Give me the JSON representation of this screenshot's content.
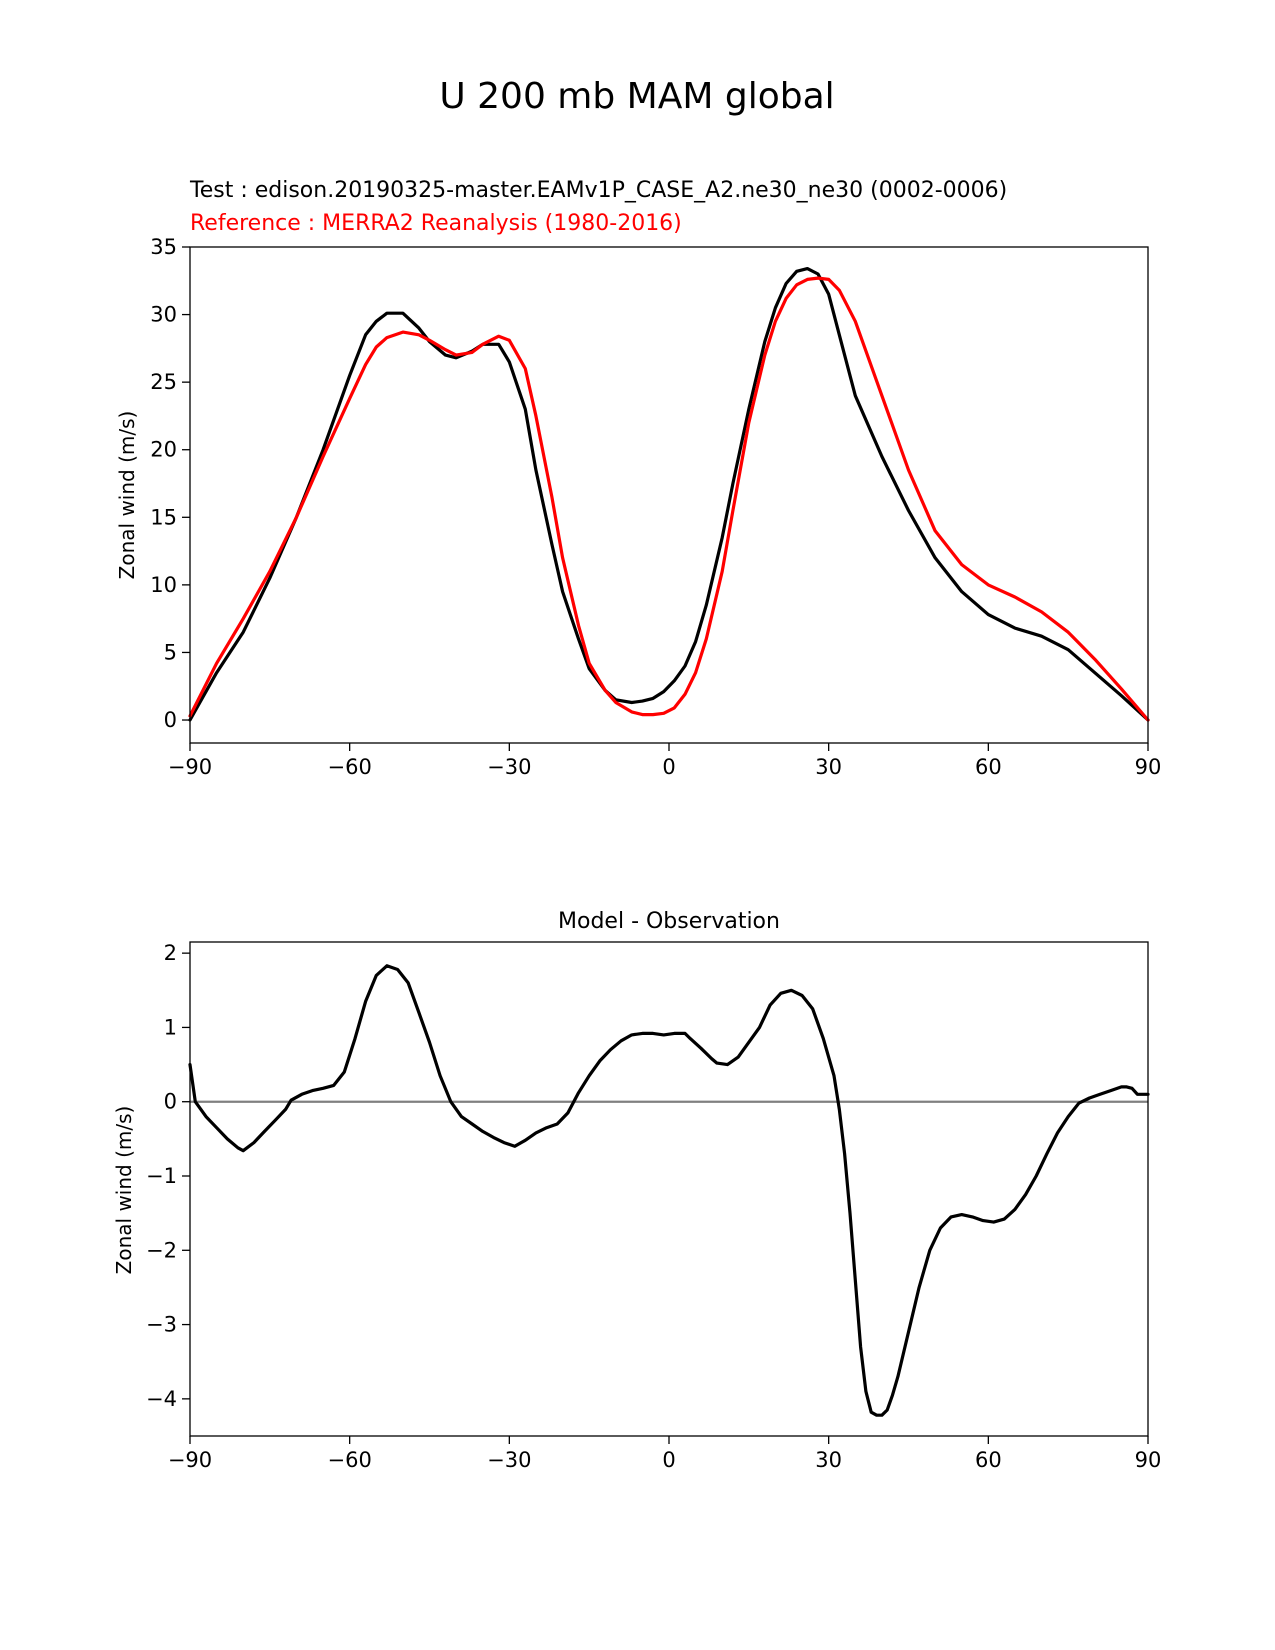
{
  "figure_title": "U 200 mb MAM global",
  "colors": {
    "test": "#000000",
    "reference": "#ff0000",
    "zero_line": "#808080",
    "frame": "#000000"
  },
  "chart_data": [
    {
      "type": "line",
      "title_test": "Test : edison.20190325-master.EAMv1P_CASE_A2.ne30_ne30 (0002-0006)",
      "title_reference": "Reference : MERRA2 Reanalysis (1980-2016)",
      "xlabel": "",
      "ylabel": "Zonal wind (m/s)",
      "xlim": [
        -90,
        90
      ],
      "ylim": [
        -1.7,
        35
      ],
      "xticks": [
        -90,
        -60,
        -30,
        0,
        30,
        60,
        90
      ],
      "xtick_labels": [
        "−90",
        "−60",
        "−30",
        "0",
        "30",
        "60",
        "90"
      ],
      "yticks": [
        0,
        5,
        10,
        15,
        20,
        25,
        30,
        35
      ],
      "ytick_labels": [
        "0",
        "5",
        "10",
        "15",
        "20",
        "25",
        "30",
        "35"
      ],
      "series": [
        {
          "name": "Test",
          "color": "#000000",
          "x": [
            -90,
            -85,
            -80,
            -75,
            -70,
            -65,
            -60,
            -57,
            -55,
            -53,
            -50,
            -47,
            -45,
            -42,
            -40,
            -37,
            -35,
            -32,
            -30,
            -27,
            -25,
            -22,
            -20,
            -17,
            -15,
            -12,
            -10,
            -7,
            -5,
            -3,
            -1,
            1,
            3,
            5,
            7,
            10,
            12,
            15,
            18,
            20,
            22,
            24,
            26,
            28,
            30,
            32,
            35,
            40,
            45,
            50,
            55,
            60,
            65,
            70,
            75,
            80,
            85,
            90
          ],
          "y": [
            0,
            3.5,
            6.5,
            10.5,
            15,
            20,
            25.5,
            28.5,
            29.5,
            30.1,
            30.1,
            29,
            28,
            27,
            26.8,
            27.3,
            27.8,
            27.8,
            26.5,
            23,
            18.5,
            13,
            9.5,
            6,
            3.8,
            2.2,
            1.5,
            1.3,
            1.4,
            1.6,
            2.1,
            2.9,
            4,
            5.8,
            8.5,
            13.5,
            17.5,
            23,
            28,
            30.5,
            32.3,
            33.2,
            33.4,
            33,
            31.5,
            28.5,
            24,
            19.5,
            15.5,
            12,
            9.5,
            7.8,
            6.8,
            6.2,
            5.2,
            3.5,
            1.8,
            0
          ]
        },
        {
          "name": "Reference",
          "color": "#ff0000",
          "x": [
            -90,
            -85,
            -80,
            -75,
            -70,
            -65,
            -60,
            -57,
            -55,
            -53,
            -50,
            -47,
            -45,
            -42,
            -40,
            -37,
            -35,
            -32,
            -30,
            -27,
            -25,
            -22,
            -20,
            -17,
            -15,
            -12,
            -10,
            -7,
            -5,
            -3,
            -1,
            1,
            3,
            5,
            7,
            10,
            12,
            15,
            18,
            20,
            22,
            24,
            26,
            28,
            30,
            32,
            35,
            40,
            45,
            50,
            55,
            60,
            65,
            70,
            75,
            80,
            85,
            90
          ],
          "y": [
            0.3,
            4.2,
            7.5,
            11,
            15,
            19.5,
            23.8,
            26.3,
            27.6,
            28.3,
            28.7,
            28.5,
            28.1,
            27.4,
            27,
            27.2,
            27.8,
            28.4,
            28.1,
            26,
            22.5,
            16.5,
            12,
            7,
            4.2,
            2.2,
            1.3,
            0.6,
            0.4,
            0.4,
            0.5,
            0.9,
            1.9,
            3.5,
            6,
            11,
            15.5,
            22,
            27,
            29.5,
            31.2,
            32.2,
            32.6,
            32.7,
            32.6,
            31.8,
            29.5,
            24,
            18.5,
            14,
            11.5,
            10,
            9.1,
            8,
            6.5,
            4.5,
            2.3,
            0
          ]
        }
      ]
    },
    {
      "type": "line",
      "title": "Model - Observation",
      "xlabel": "",
      "ylabel": "Zonal wind (m/s)",
      "xlim": [
        -90,
        90
      ],
      "ylim": [
        -4.5,
        2.15
      ],
      "xticks": [
        -90,
        -60,
        -30,
        0,
        30,
        60,
        90
      ],
      "xtick_labels": [
        "−90",
        "−60",
        "−30",
        "0",
        "30",
        "60",
        "90"
      ],
      "yticks": [
        -4,
        -3,
        -2,
        -1,
        0,
        1,
        2
      ],
      "ytick_labels": [
        "−4",
        "−3",
        "−2",
        "−1",
        "0",
        "1",
        "2"
      ],
      "zero_line": true,
      "series": [
        {
          "name": "Model - Observation",
          "color": "#000000",
          "x": [
            -90,
            -89,
            -87,
            -85,
            -83,
            -81,
            -80,
            -78,
            -76,
            -74,
            -72,
            -71,
            -69,
            -67,
            -65,
            -63,
            -61,
            -59,
            -57,
            -55,
            -53,
            -51,
            -49,
            -47,
            -45,
            -43,
            -41,
            -39,
            -37,
            -35,
            -33,
            -31,
            -29,
            -27,
            -25,
            -23,
            -21,
            -19,
            -17,
            -15,
            -13,
            -11,
            -9,
            -7,
            -5,
            -3,
            -1,
            1,
            3,
            4,
            6,
            8,
            9,
            11,
            13,
            15,
            17,
            19,
            21,
            23,
            25,
            27,
            29,
            31,
            32,
            33,
            34,
            35,
            36,
            37,
            38,
            39,
            40,
            41,
            42,
            43,
            45,
            47,
            49,
            51,
            53,
            55,
            57,
            59,
            61,
            63,
            65,
            67,
            69,
            71,
            73,
            75,
            77,
            79,
            81,
            83,
            85,
            86,
            87,
            88,
            89,
            90
          ],
          "y": [
            0.5,
            0.0,
            -0.2,
            -0.35,
            -0.5,
            -0.62,
            -0.66,
            -0.55,
            -0.4,
            -0.25,
            -0.1,
            0.02,
            0.1,
            0.15,
            0.18,
            0.22,
            0.4,
            0.85,
            1.35,
            1.7,
            1.83,
            1.78,
            1.6,
            1.2,
            0.8,
            0.35,
            0.0,
            -0.2,
            -0.3,
            -0.4,
            -0.48,
            -0.55,
            -0.6,
            -0.52,
            -0.42,
            -0.35,
            -0.3,
            -0.15,
            0.12,
            0.35,
            0.55,
            0.7,
            0.82,
            0.9,
            0.92,
            0.92,
            0.9,
            0.92,
            0.92,
            0.85,
            0.72,
            0.58,
            0.52,
            0.5,
            0.6,
            0.8,
            1.0,
            1.3,
            1.46,
            1.5,
            1.43,
            1.25,
            0.85,
            0.35,
            -0.1,
            -0.7,
            -1.5,
            -2.4,
            -3.3,
            -3.9,
            -4.18,
            -4.22,
            -4.22,
            -4.15,
            -3.95,
            -3.7,
            -3.1,
            -2.5,
            -2.0,
            -1.7,
            -1.55,
            -1.52,
            -1.55,
            -1.6,
            -1.62,
            -1.58,
            -1.45,
            -1.25,
            -1.0,
            -0.7,
            -0.42,
            -0.2,
            -0.02,
            0.05,
            0.1,
            0.15,
            0.2,
            0.2,
            0.18,
            0.1,
            0.1,
            0.1
          ]
        }
      ]
    }
  ]
}
